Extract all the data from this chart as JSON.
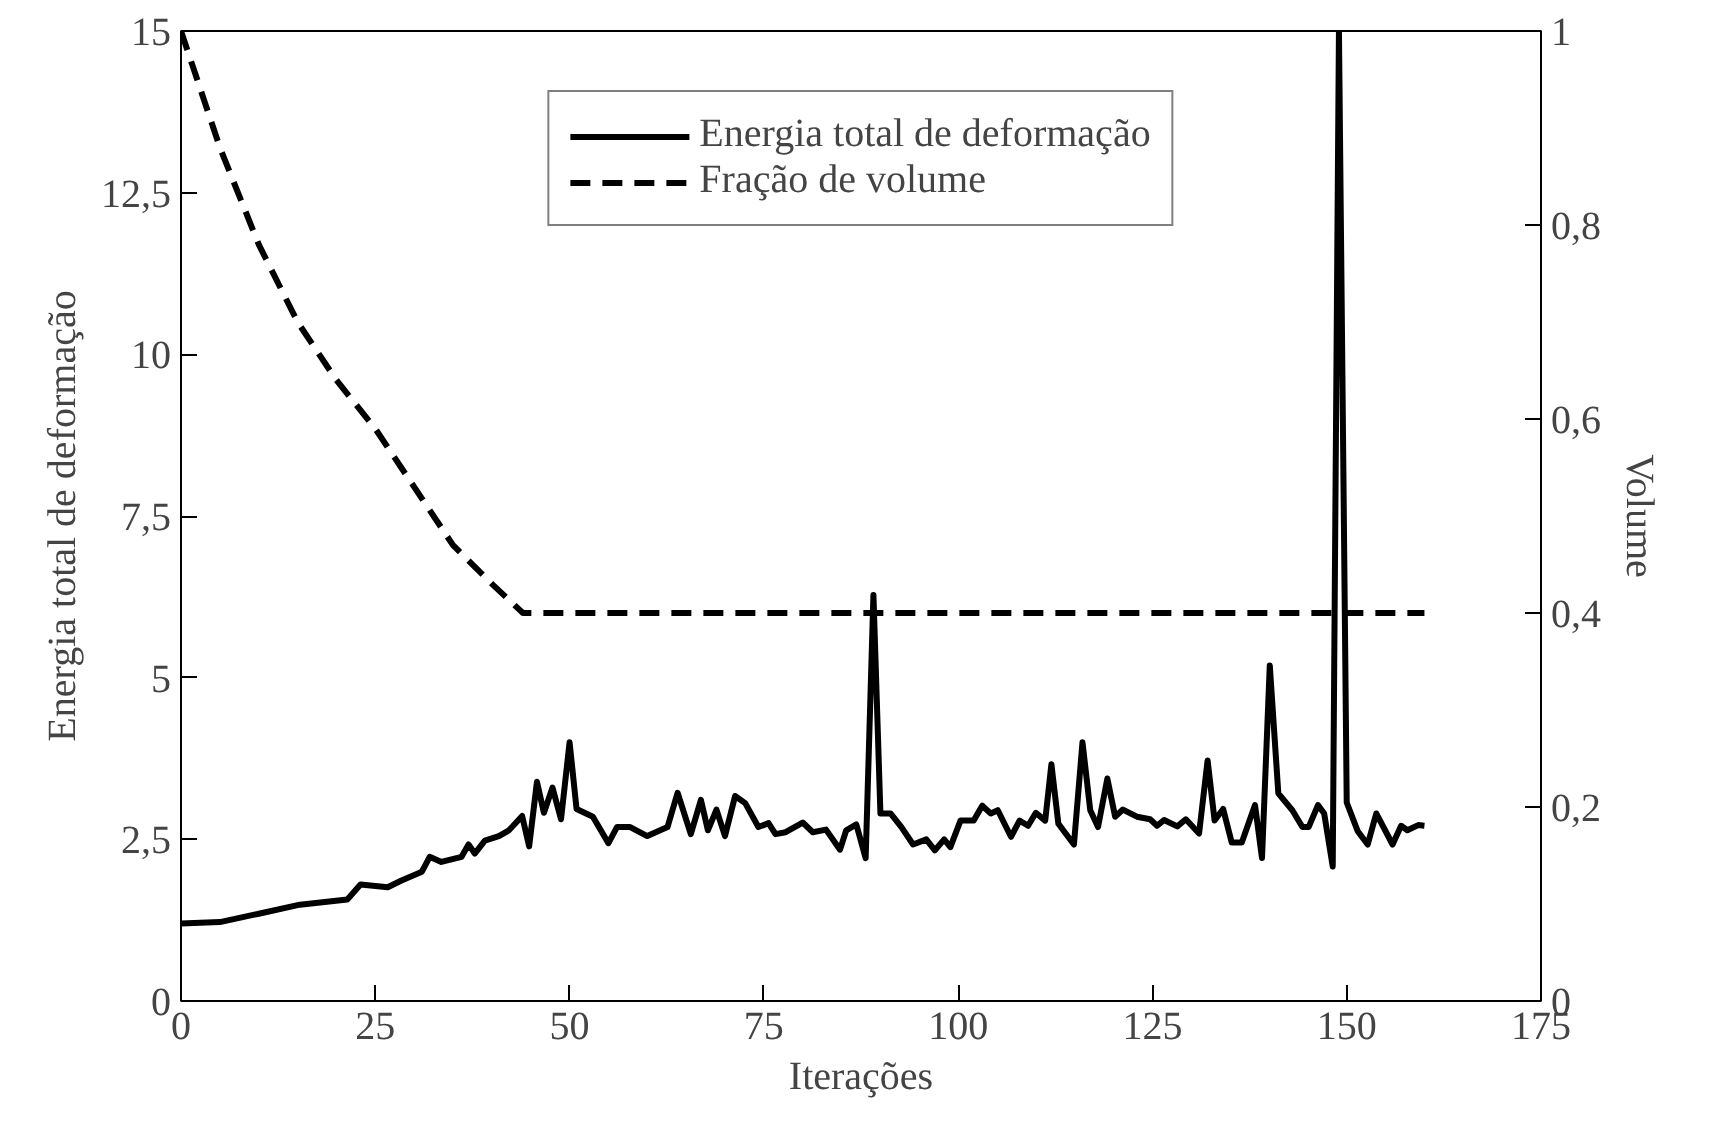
{
  "chart_data": {
    "type": "line",
    "xlabel": "Iterações",
    "ylabel": "Energia total de deformação",
    "y2label": "Volume",
    "xlim": [
      0,
      175
    ],
    "xticks": [
      0,
      25,
      50,
      75,
      100,
      125,
      150,
      175
    ],
    "ylim": [
      0,
      15
    ],
    "yticks": [
      0,
      {
        "value": 2.5,
        "label": "2,5"
      },
      5,
      {
        "value": 7.5,
        "label": "7,5"
      },
      10,
      {
        "value": 12.5,
        "label": "12,5"
      },
      15
    ],
    "y2lim": [
      0,
      1
    ],
    "y2ticks": [
      0,
      {
        "value": 0.2,
        "label": "0,2"
      },
      {
        "value": 0.4,
        "label": "0,4"
      },
      {
        "value": 0.6,
        "label": "0,6"
      },
      {
        "value": 0.8,
        "label": "0,8"
      },
      1
    ],
    "grid": false,
    "legend": "top",
    "series": [
      {
        "name": "Energia total de deformação",
        "color": "#000000",
        "line_style": "solid",
        "x": [
          0,
          5,
          10,
          15.3,
          21.4,
          23.1,
          26.6,
          28.3,
          31,
          32,
          33.5,
          36.1,
          37,
          37.8,
          39.1,
          40.9,
          42.2,
          43.9,
          44.8,
          45.8,
          46.7,
          47.8,
          48.9,
          50,
          50.9,
          53,
          55,
          56.1,
          57.8,
          60,
          62.6,
          63.9,
          65.6,
          66.9,
          67.8,
          68.9,
          70,
          71.3,
          72.6,
          74.3,
          75.6,
          76.5,
          77.8,
          80,
          81.3,
          83,
          84.8,
          85.6,
          86.9,
          88.1,
          89.1,
          90,
          91.3,
          92.7,
          94.2,
          95.9,
          97,
          98.2,
          99,
          100.3,
          102,
          103.1,
          104.2,
          105.1,
          106.8,
          107.9,
          109,
          110,
          111.2,
          112,
          112.9,
          114.9,
          116,
          117,
          118,
          119.2,
          120.2,
          121.2,
          123,
          124.7,
          125.6,
          126.5,
          128.2,
          129.3,
          131,
          132.1,
          133,
          134.1,
          135.2,
          136.5,
          138.2,
          139.1,
          140.1,
          141.2,
          143,
          144.3,
          145.1,
          146.3,
          147.1,
          148.2,
          149,
          150,
          151.4,
          152.7,
          153.8,
          155.9,
          157,
          157.8,
          159.2,
          160
        ],
        "values": [
          1.2,
          1.22,
          1.35,
          1.49,
          1.57,
          1.8,
          1.76,
          1.86,
          2.0,
          2.23,
          2.15,
          2.23,
          2.42,
          2.28,
          2.48,
          2.55,
          2.64,
          2.86,
          2.39,
          3.39,
          2.91,
          3.3,
          2.81,
          4.0,
          2.97,
          2.85,
          2.44,
          2.69,
          2.69,
          2.55,
          2.69,
          3.22,
          2.58,
          3.11,
          2.64,
          2.96,
          2.55,
          3.17,
          3.06,
          2.69,
          2.75,
          2.58,
          2.61,
          2.76,
          2.61,
          2.65,
          2.34,
          2.64,
          2.73,
          2.21,
          6.28,
          2.9,
          2.9,
          2.69,
          2.42,
          2.5,
          2.33,
          2.5,
          2.38,
          2.79,
          2.79,
          3.02,
          2.9,
          2.95,
          2.54,
          2.79,
          2.71,
          2.91,
          2.79,
          3.66,
          2.74,
          2.42,
          4.0,
          2.95,
          2.69,
          3.44,
          2.85,
          2.96,
          2.85,
          2.81,
          2.71,
          2.8,
          2.7,
          2.81,
          2.59,
          3.72,
          2.79,
          2.97,
          2.45,
          2.45,
          3.03,
          2.21,
          5.19,
          3.21,
          2.95,
          2.69,
          2.69,
          3.03,
          2.9,
          2.08,
          15,
          3.07,
          2.63,
          2.42,
          2.9,
          2.42,
          2.71,
          2.64,
          2.72,
          2.71
        ]
      },
      {
        "name": "Fração de volume",
        "color": "#000000",
        "line_style": "dashed",
        "axis": "y2",
        "x": [
          0,
          5,
          10,
          15,
          20,
          25,
          30,
          35,
          40,
          44,
          160
        ],
        "values": [
          1.0,
          0.88,
          0.78,
          0.7,
          0.64,
          0.59,
          0.53,
          0.47,
          0.43,
          0.4,
          0.4
        ]
      }
    ]
  }
}
